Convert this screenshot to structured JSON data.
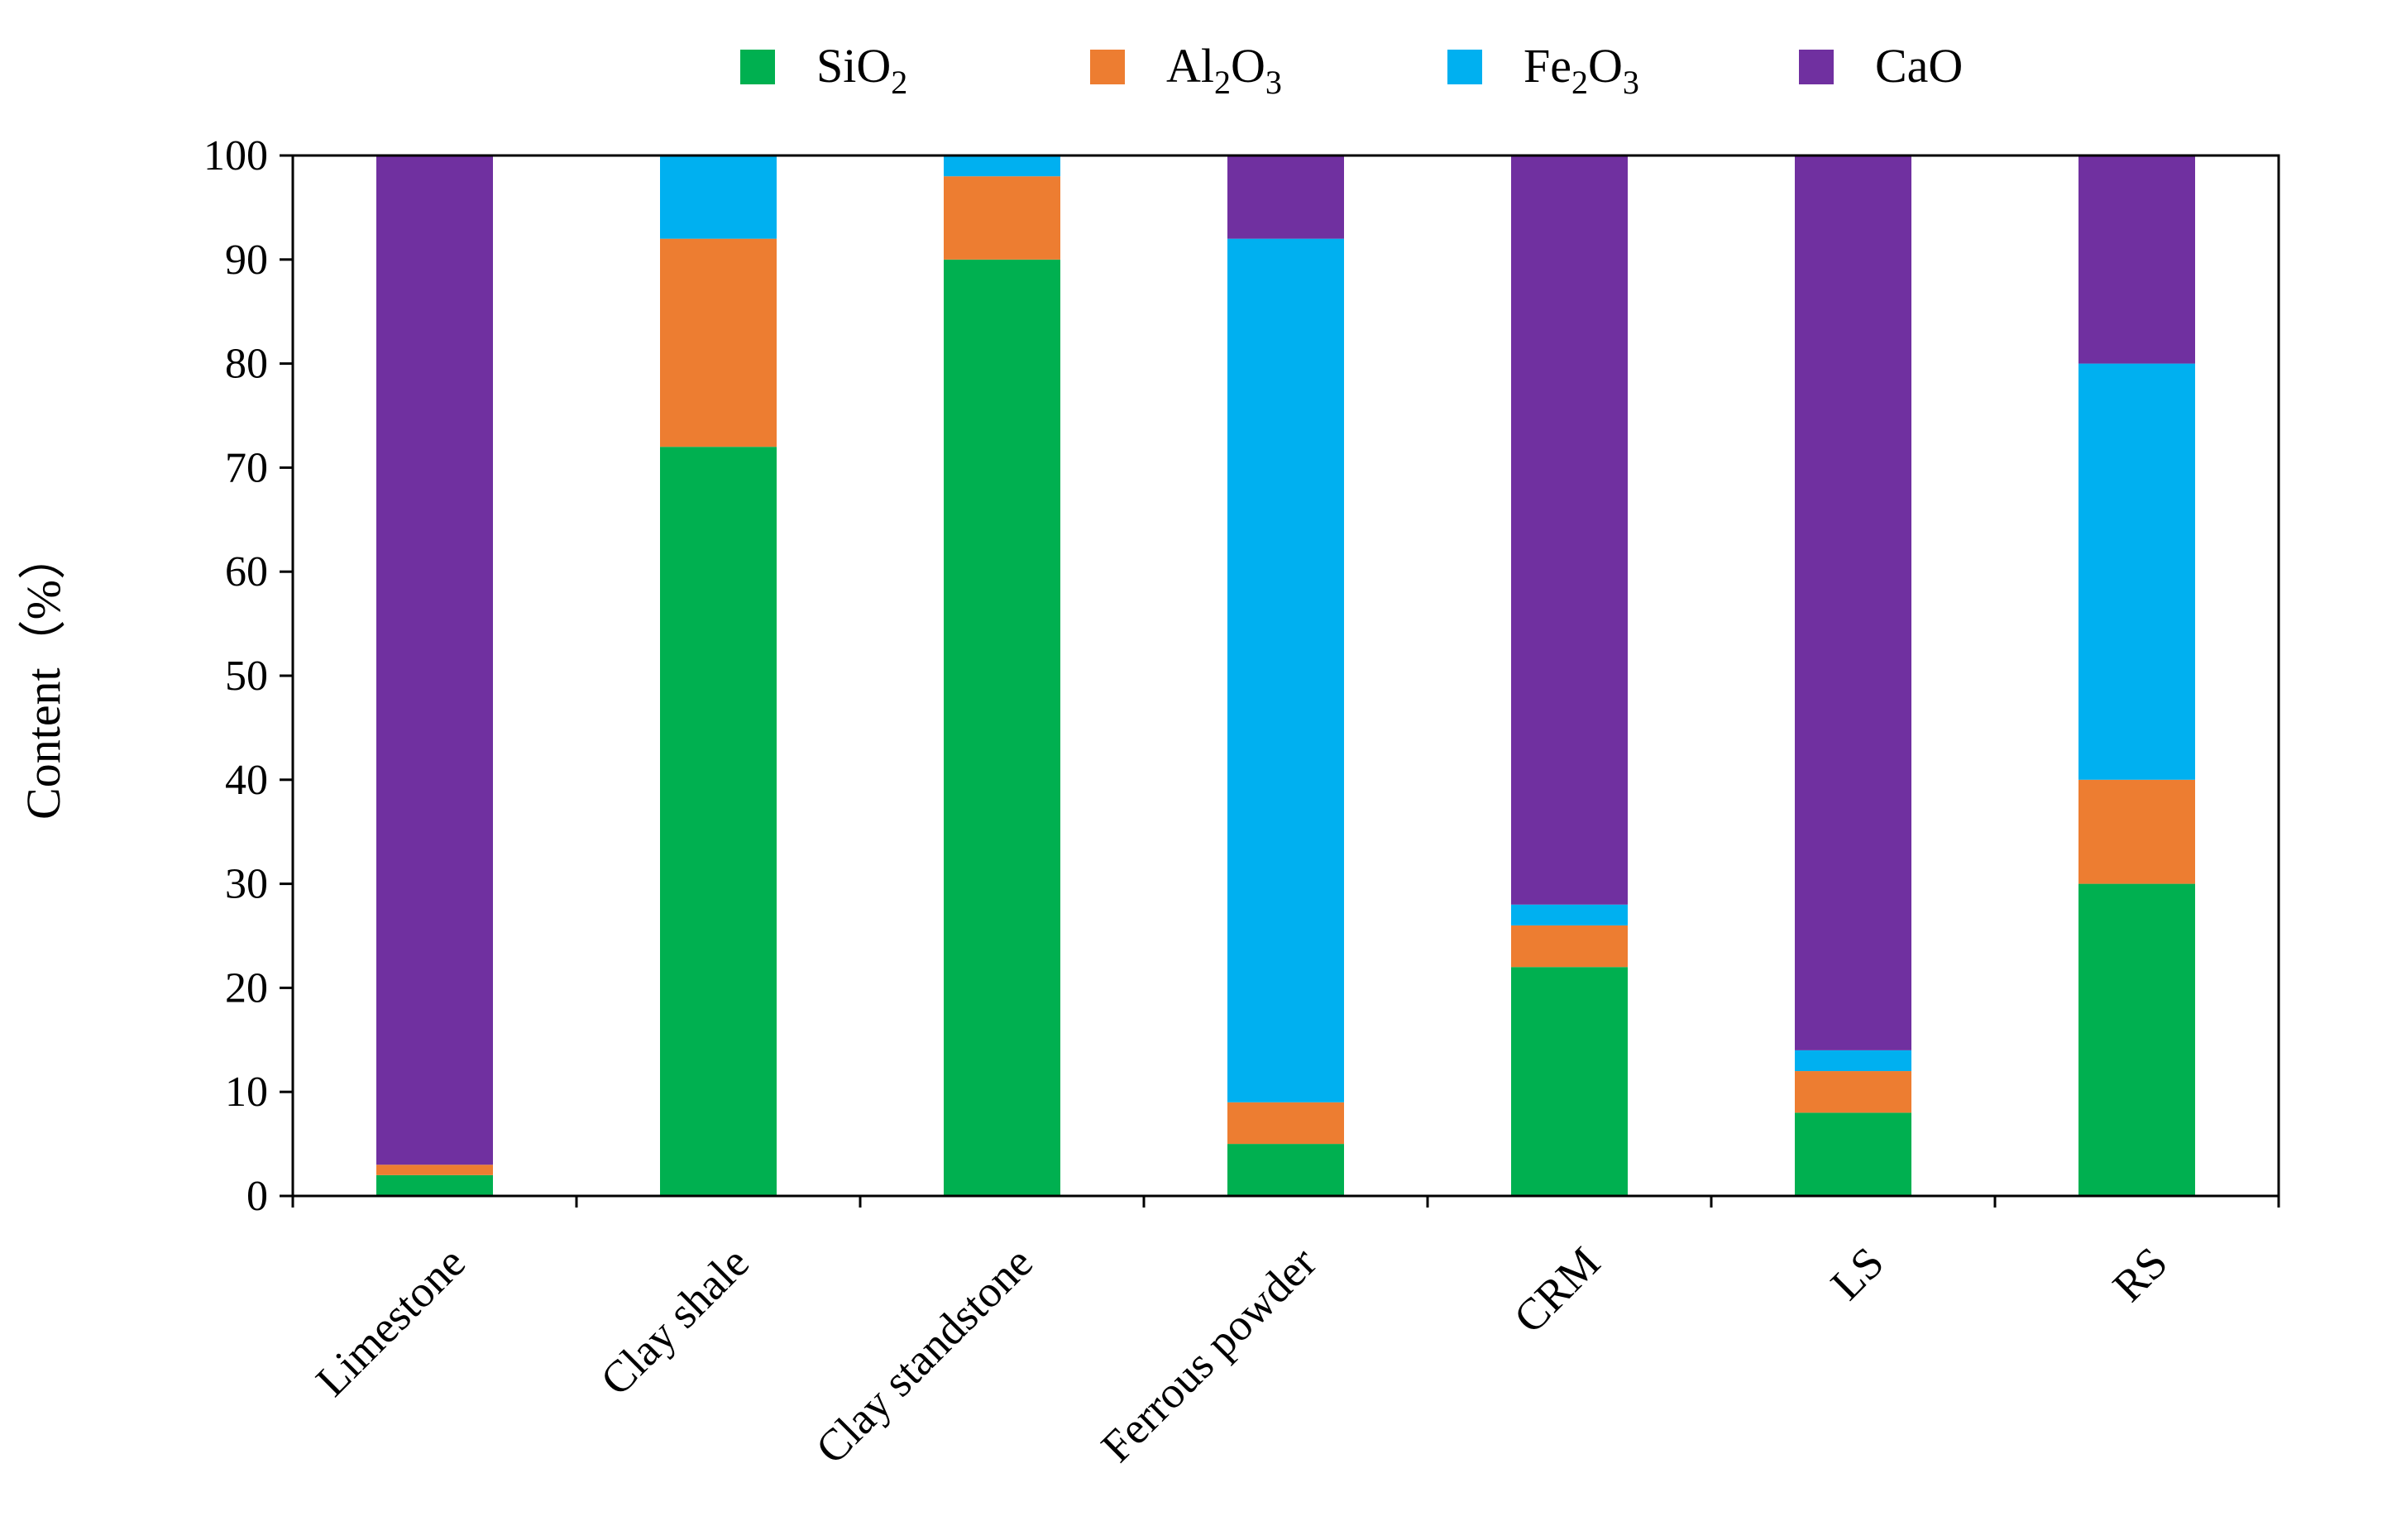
{
  "chart_data": {
    "type": "bar",
    "stacked": true,
    "categories": [
      "Limestone",
      "Clay shale",
      "Clay standstone",
      "Ferrous powder",
      "CRM",
      "LS",
      "RS"
    ],
    "series": [
      {
        "name": "SiO2",
        "name_base": "SiO",
        "name_sub": "2",
        "color": "#00b050",
        "values": [
          2,
          72,
          90,
          5,
          22,
          8,
          30
        ]
      },
      {
        "name": "Al2O3",
        "name_base": "Al",
        "name_sub": "2",
        "name_base2": "O",
        "name_sub2": "3",
        "color": "#ed7d31",
        "values": [
          1,
          20,
          8,
          4,
          4,
          4,
          10
        ]
      },
      {
        "name": "Fe2O3",
        "name_base": "Fe",
        "name_sub": "2",
        "name_base2": "O",
        "name_sub2": "3",
        "color": "#00b0f0",
        "values": [
          0,
          8,
          2,
          83,
          2,
          2,
          40
        ]
      },
      {
        "name": "CaO",
        "name_base": "CaO",
        "color": "#7030a0",
        "values": [
          97,
          0,
          0,
          8,
          72,
          86,
          20
        ]
      }
    ],
    "ylabel": "Content（%）",
    "ylim": [
      0,
      100
    ],
    "yticks": [
      0,
      10,
      20,
      30,
      40,
      50,
      60,
      70,
      80,
      90,
      100
    ],
    "grid": false,
    "legend_position": "top"
  }
}
